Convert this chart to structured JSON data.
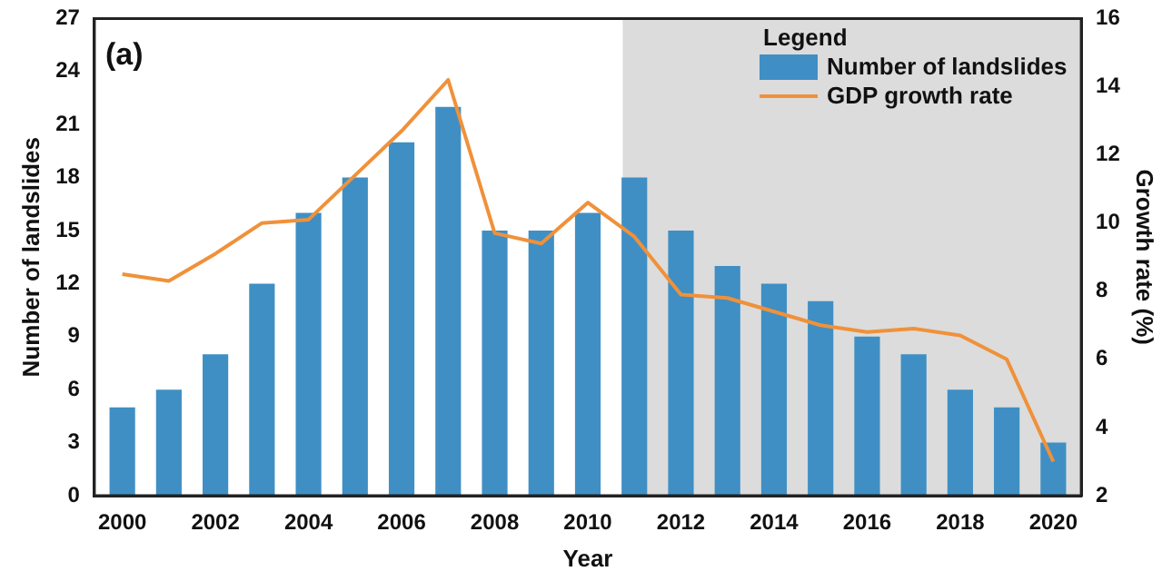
{
  "chart_data": {
    "type": "bar",
    "x": [
      2000,
      2001,
      2002,
      2003,
      2004,
      2005,
      2006,
      2007,
      2008,
      2009,
      2010,
      2011,
      2012,
      2013,
      2014,
      2015,
      2016,
      2017,
      2018,
      2019,
      2020
    ],
    "xlabel": "Year",
    "ylabel": "Number of landslides",
    "y2label": "Growth rate (%)",
    "series": [
      {
        "name": "Number of landslides",
        "color": "#3f8fc4",
        "values": [
          5,
          6,
          8,
          12,
          16,
          18,
          20,
          22,
          15,
          15,
          16,
          18,
          15,
          13,
          12,
          11,
          9,
          8,
          6,
          5,
          3
        ]
      },
      {
        "name": "GDP growth rate",
        "type": "line",
        "axis": "y2",
        "color": "#f0913a",
        "values": [
          8.5,
          8.3,
          9.1,
          10.0,
          10.1,
          11.4,
          12.7,
          14.2,
          9.7,
          9.4,
          10.6,
          9.6,
          7.9,
          7.8,
          7.4,
          7.0,
          6.8,
          6.9,
          6.7,
          6.0,
          3.0
        ]
      }
    ],
    "xlim": [
      1999.4,
      2020.6
    ],
    "xticks": [
      2000,
      2002,
      2004,
      2006,
      2008,
      2010,
      2012,
      2014,
      2016,
      2018,
      2020
    ],
    "ylim": [
      0,
      27
    ],
    "yticks": [
      0,
      3,
      6,
      9,
      12,
      15,
      18,
      21,
      24,
      27
    ],
    "y2lim": [
      2,
      16
    ],
    "y2ticks": [
      2,
      4,
      6,
      8,
      10,
      12,
      14,
      16
    ],
    "bands": [
      {
        "axis": "x",
        "from": 2010.75,
        "to": 2020.6,
        "color": "#dcdcdc"
      }
    ],
    "annotations": [
      "(a)"
    ],
    "legend": "top right",
    "legend_title": "Legend",
    "grid": false,
    "marker": "none",
    "line_style": "solid"
  }
}
